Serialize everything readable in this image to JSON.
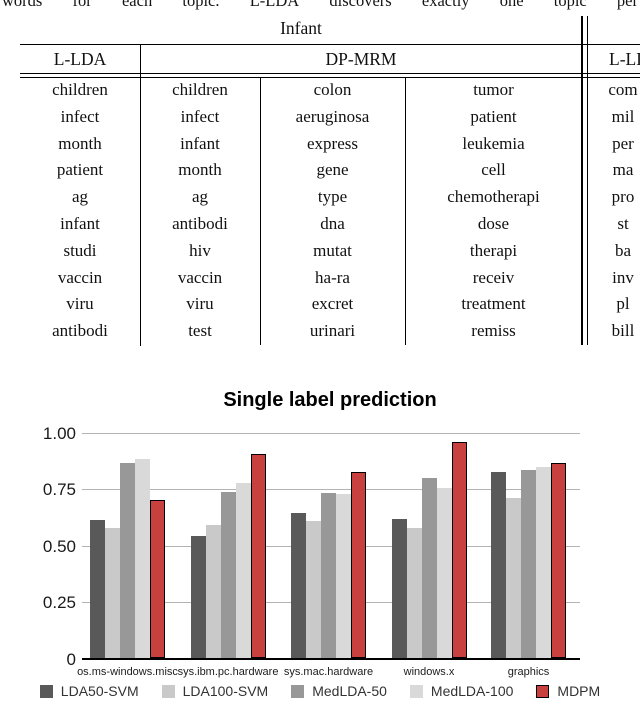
{
  "page": {
    "top_caption_fragment": "words for each topic. L-LDA discovers exactly one topic per"
  },
  "table": {
    "group_label": "Infant",
    "headers": {
      "left": "L-LDA",
      "middle": "DP-MRM",
      "right_partial": "L-LDA"
    },
    "l_lda_words": [
      "children",
      "infect",
      "month",
      "patient",
      "ag",
      "infant",
      "studi",
      "vaccin",
      "viru",
      "antibodi"
    ],
    "dp_mrm_topics": [
      [
        "children",
        "infect",
        "infant",
        "month",
        "ag",
        "antibodi",
        "hiv",
        "vaccin",
        "viru",
        "test"
      ],
      [
        "colon",
        "aeruginosa",
        "express",
        "gene",
        "type",
        "dna",
        "mutat",
        "ha-ra",
        "excret",
        "urinari"
      ],
      [
        "tumor",
        "patient",
        "leukemia",
        "cell",
        "chemotherapi",
        "dose",
        "therapi",
        "receiv",
        "treatment",
        "remiss"
      ]
    ],
    "next_table_partial_words": [
      "com",
      "mil",
      "per",
      "ma",
      "pro",
      "st",
      "ba",
      "inv",
      "pl",
      "bill"
    ]
  },
  "chart_data": {
    "type": "bar",
    "title": "Single label prediction",
    "categories": [
      "os.ms-windows.misc",
      "sys.ibm.pc.hardware",
      "sys.mac.hardware",
      "windows.x",
      "graphics"
    ],
    "series": [
      {
        "name": "LDA50-SVM",
        "color": "#595959",
        "values": [
          0.615,
          0.545,
          0.645,
          0.62,
          0.825
        ]
      },
      {
        "name": "LDA100-SVM",
        "color": "#c9c9c9",
        "texture": "dotted",
        "values": [
          0.58,
          0.59,
          0.61,
          0.58,
          0.71
        ]
      },
      {
        "name": "MedLDA-50",
        "color": "#989898",
        "values": [
          0.865,
          0.74,
          0.735,
          0.8,
          0.835
        ]
      },
      {
        "name": "MedLDA-100",
        "color": "#d9d9d9",
        "texture": "dotted",
        "values": [
          0.885,
          0.78,
          0.73,
          0.755,
          0.85
        ]
      },
      {
        "name": "MDPM",
        "color": "#c9413f",
        "border_color": "#000000",
        "values": [
          0.705,
          0.905,
          0.825,
          0.96,
          0.865
        ]
      }
    ],
    "yticks": [
      {
        "label": "1.00",
        "value": 1.0
      },
      {
        "label": "0.75",
        "value": 0.75
      },
      {
        "label": "0.50",
        "value": 0.5
      },
      {
        "label": "0.25",
        "value": 0.25
      },
      {
        "label": "0",
        "value": 0
      }
    ],
    "ylim": [
      0,
      1
    ],
    "grid": true,
    "gridline_color": "#b3b3b3",
    "axis_color": "#000000",
    "legend_position": "bottom"
  }
}
